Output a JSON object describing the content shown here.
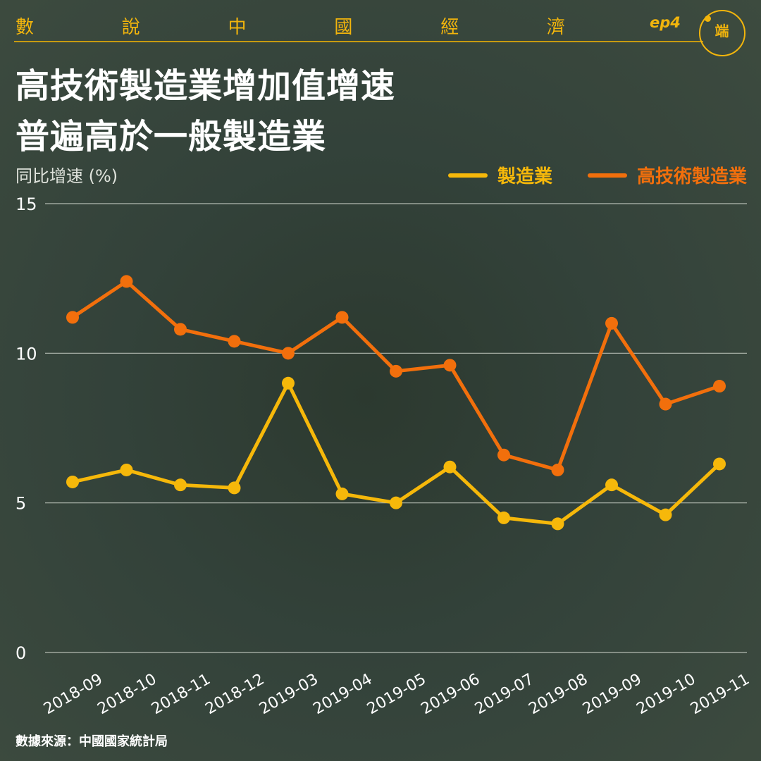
{
  "header": {
    "series_chars": [
      "數",
      "說",
      "中",
      "國",
      "經",
      "濟"
    ],
    "episode": "ep4",
    "logo_text": "端"
  },
  "title_lines": [
    "高技術製造業增加值增速",
    "普遍高於一般製造業"
  ],
  "source": "數據來源：中國國家統計局",
  "colors": {
    "manufacturing": "#f6b80a",
    "high_tech": "#f26f0c",
    "accent": "#f2b50c",
    "grid": "#c9cfc6"
  },
  "chart_data": {
    "type": "line",
    "ylabel": "同比增速 (%)",
    "ylim": [
      0,
      15
    ],
    "yticks": [
      0,
      5,
      10,
      15
    ],
    "grid": true,
    "legend_position": "top-right",
    "categories": [
      "2018-09",
      "2018-10",
      "2018-11",
      "2018-12",
      "2019-03",
      "2019-04",
      "2019-05",
      "2019-06",
      "2019-07",
      "2019-08",
      "2019-09",
      "2019-10",
      "2019-11"
    ],
    "series": [
      {
        "name": "製造業",
        "color": "#f6b80a",
        "values": [
          5.7,
          6.1,
          5.6,
          5.5,
          9.0,
          5.3,
          5.0,
          6.2,
          4.5,
          4.3,
          5.6,
          4.6,
          6.3
        ]
      },
      {
        "name": "高技術製造業",
        "color": "#f26f0c",
        "values": [
          11.2,
          12.4,
          10.8,
          10.4,
          10.0,
          11.2,
          9.4,
          9.6,
          6.6,
          6.1,
          11.0,
          8.3,
          8.9
        ]
      }
    ]
  }
}
